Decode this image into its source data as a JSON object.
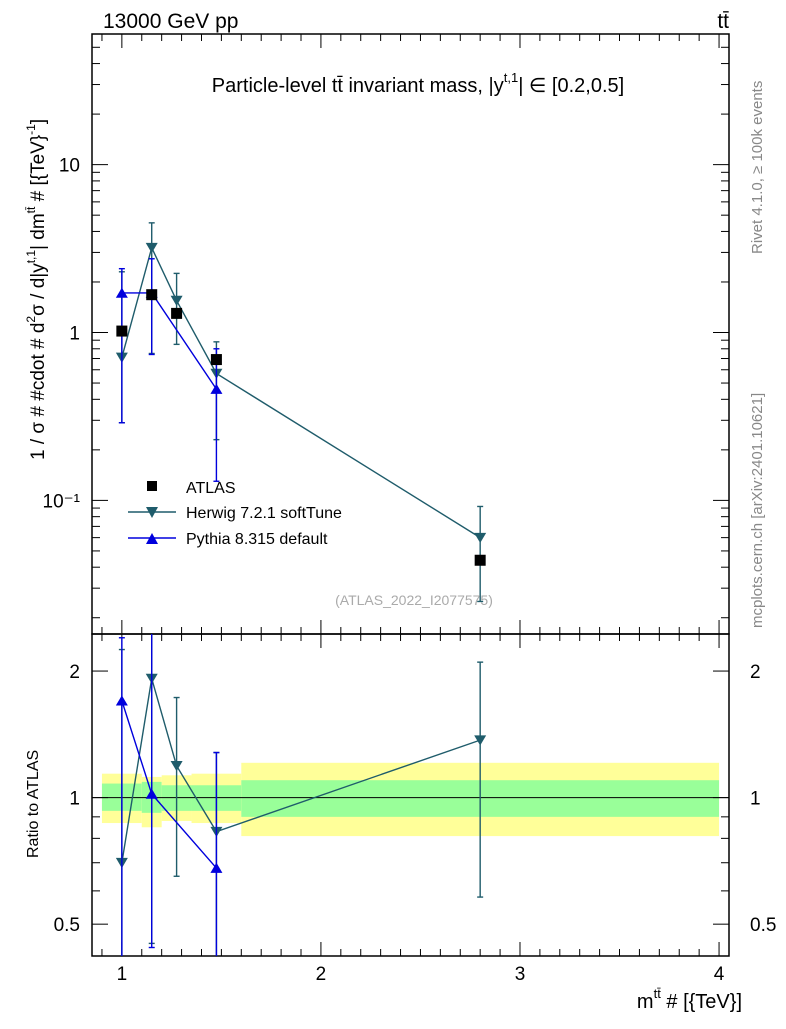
{
  "header": {
    "left": "13000 GeV pp",
    "right": "tt̄"
  },
  "side_labels": {
    "rivet": "Rivet 4.1.0, ≥ 100k events",
    "mcplots": "mcplots.cern.ch [arXiv:2401.10621]"
  },
  "chart_data": {
    "type": "scatter",
    "title": "Particle-level tt̄ invariant mass, |y^{t,1}| ∈ [0.2,0.5]",
    "title_parts": {
      "pre": "Particle-level tt̄ invariant mass, |y",
      "sup": "t,1",
      "post": "| ∈ [0.2,0.5]"
    },
    "analysis_id": "(ATLAS_2022_I2077575)",
    "xlabel": "m^{tt̄} # [{TeV}]",
    "xlabel_parts": {
      "base": "m",
      "sup": "tt̄",
      "post": " # [{TeV}]"
    },
    "ylabel": "1 / σ # #cdot # d²σ / d|y^{t,1}| dm^{tt̄} # [{TeV}⁻¹]",
    "ylabel_parts": [
      "1 / σ # #cdot # d",
      "2",
      "σ / d|y",
      "t,1",
      "| dm",
      "tt̄",
      " # [{TeV}",
      "-1",
      "]"
    ],
    "ratio_ylabel": "Ratio to ATLAS",
    "xlim": [
      0.85,
      4.05
    ],
    "ylim": [
      0.016,
      60
    ],
    "ratio_ylim": [
      0.42,
      2.45
    ],
    "log_y": true,
    "x_ticks": [
      1,
      2,
      3,
      4
    ],
    "x_tick_labels": [
      "1",
      "2",
      "3",
      "4"
    ],
    "y_ticks": [
      0.1,
      1,
      10
    ],
    "y_tick_labels": [
      "10⁻¹",
      "1",
      "10"
    ],
    "ratio_ticks": [
      0.5,
      1,
      2
    ],
    "ratio_tick_labels": [
      "0.5",
      "1",
      "2"
    ],
    "legend_position": "middle-left",
    "series": [
      {
        "name": "ATLAS",
        "color": "#000000",
        "marker": "square",
        "x": [
          1.0,
          1.15,
          1.275,
          1.475,
          2.8
        ],
        "y": [
          1.02,
          1.68,
          1.3,
          0.69,
          0.044
        ],
        "bin_low": [
          0.9,
          1.1,
          1.2,
          1.35,
          1.6
        ],
        "bin_high": [
          1.1,
          1.2,
          1.35,
          1.6,
          4.0
        ]
      },
      {
        "name": "Herwig 7.2.1 softTune",
        "color": "#1f5c6b",
        "marker": "triangle-down",
        "x": [
          1.0,
          1.15,
          1.275,
          1.475,
          2.8
        ],
        "y": [
          0.71,
          3.2,
          1.55,
          0.57,
          0.06
        ],
        "err_low": [
          0.29,
          0.75,
          0.85,
          0.23,
          0.025
        ],
        "err_high": [
          2.3,
          4.5,
          2.25,
          0.88,
          0.092
        ],
        "ratio": [
          0.7,
          1.92,
          1.19,
          0.83,
          1.37
        ],
        "ratio_low": [
          0.28,
          0.45,
          0.65,
          0.33,
          0.58
        ],
        "ratio_high": [
          2.25,
          2.7,
          1.73,
          1.28,
          2.1
        ]
      },
      {
        "name": "Pythia 8.315 default",
        "color": "#0000dd",
        "marker": "triangle-up",
        "x": [
          1.0,
          1.15,
          1.475
        ],
        "y": [
          1.72,
          1.72,
          0.46
        ],
        "err_low": [
          0.29,
          0.74,
          0.13
        ],
        "err_high": [
          2.4,
          2.75,
          0.8
        ],
        "ratio": [
          1.7,
          1.02,
          0.68
        ],
        "ratio_low": [
          0.28,
          0.44,
          0.2
        ],
        "ratio_high": [
          2.4,
          2.75,
          1.28
        ]
      }
    ],
    "uncertainty_bands": {
      "inner_color": "#99ff99",
      "outer_color": "#ffff99",
      "bins": [
        {
          "x0": 0.9,
          "x1": 1.1,
          "inner": [
            0.93,
            1.08
          ],
          "outer": [
            0.87,
            1.14
          ]
        },
        {
          "x0": 1.1,
          "x1": 1.2,
          "inner": [
            0.92,
            1.09
          ],
          "outer": [
            0.85,
            1.12
          ]
        },
        {
          "x0": 1.2,
          "x1": 1.35,
          "inner": [
            0.93,
            1.07
          ],
          "outer": [
            0.88,
            1.13
          ]
        },
        {
          "x0": 1.35,
          "x1": 1.6,
          "inner": [
            0.93,
            1.07
          ],
          "outer": [
            0.87,
            1.14
          ]
        },
        {
          "x0": 1.6,
          "x1": 4.0,
          "inner": [
            0.9,
            1.1
          ],
          "outer": [
            0.81,
            1.21
          ]
        }
      ]
    }
  }
}
